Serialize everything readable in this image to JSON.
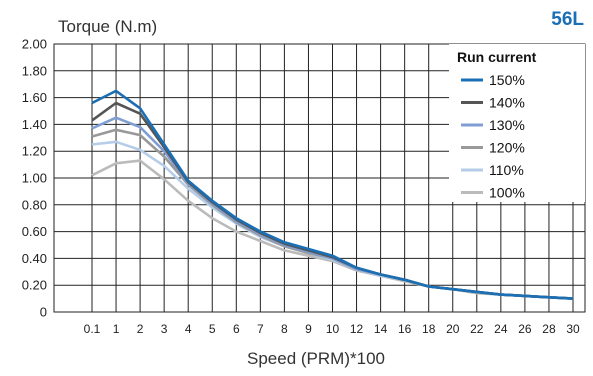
{
  "chart_data": {
    "type": "line",
    "title": "56L",
    "ylabel": "Torque (N.m)",
    "xlabel": "Speed (PRM)*100",
    "ylim": [
      0,
      2.0
    ],
    "yticks": [
      "0",
      "0.20",
      "0.40",
      "0.60",
      "0.80",
      "1.00",
      "1.20",
      "1.40",
      "1.60",
      "1.80",
      "2.00"
    ],
    "categories": [
      "0.1",
      "1",
      "2",
      "3",
      "4",
      "5",
      "6",
      "7",
      "8",
      "9",
      "10",
      "12",
      "14",
      "16",
      "18",
      "20",
      "22",
      "24",
      "26",
      "28",
      "30"
    ],
    "grid": true,
    "legend": {
      "title": "Run current",
      "position": "top-right"
    },
    "series": [
      {
        "name": "150%",
        "color": "#1a6fb5",
        "values": [
          1.56,
          1.65,
          1.52,
          1.25,
          0.98,
          0.83,
          0.7,
          0.6,
          0.52,
          0.47,
          0.42,
          0.33,
          0.28,
          0.24,
          0.19,
          0.17,
          0.15,
          0.13,
          0.12,
          0.11,
          0.1
        ]
      },
      {
        "name": "140%",
        "color": "#555555",
        "values": [
          1.43,
          1.56,
          1.48,
          1.23,
          0.97,
          0.82,
          0.69,
          0.59,
          0.51,
          0.46,
          0.41,
          0.33,
          0.28,
          0.24,
          0.19,
          0.17,
          0.15,
          0.13,
          0.12,
          0.11,
          0.1
        ]
      },
      {
        "name": "130%",
        "color": "#7f9fd4",
        "values": [
          1.37,
          1.45,
          1.38,
          1.2,
          0.96,
          0.81,
          0.68,
          0.58,
          0.5,
          0.45,
          0.4,
          0.32,
          0.28,
          0.24,
          0.19,
          0.17,
          0.15,
          0.13,
          0.12,
          0.11,
          0.1
        ]
      },
      {
        "name": "120%",
        "color": "#999999",
        "values": [
          1.31,
          1.36,
          1.32,
          1.16,
          0.95,
          0.8,
          0.67,
          0.57,
          0.49,
          0.44,
          0.4,
          0.32,
          0.28,
          0.24,
          0.19,
          0.17,
          0.15,
          0.13,
          0.12,
          0.11,
          0.1
        ]
      },
      {
        "name": "110%",
        "color": "#b5cde9",
        "values": [
          1.25,
          1.27,
          1.21,
          1.09,
          0.92,
          0.78,
          0.66,
          0.56,
          0.49,
          0.44,
          0.39,
          0.32,
          0.27,
          0.24,
          0.19,
          0.17,
          0.15,
          0.13,
          0.12,
          0.11,
          0.1
        ]
      },
      {
        "name": "100%",
        "color": "#bbbbbb",
        "values": [
          1.02,
          1.11,
          1.13,
          0.99,
          0.83,
          0.7,
          0.6,
          0.53,
          0.46,
          0.42,
          0.38,
          0.31,
          0.27,
          0.23,
          0.19,
          0.17,
          0.14,
          0.13,
          0.12,
          0.11,
          0.1
        ]
      }
    ],
    "colors": {
      "brand": "#1a6fb5",
      "grid": "#222222"
    }
  }
}
